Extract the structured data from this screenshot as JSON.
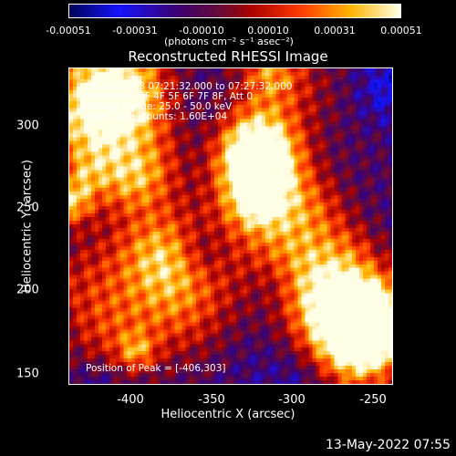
{
  "colorbar": {
    "ticks": [
      "-0.00051",
      "-0.00031",
      "-0.00010",
      "0.00010",
      "0.00031",
      "0.00051"
    ],
    "units": "(photons cm⁻² s⁻¹ asec⁻²)"
  },
  "plot": {
    "title": "Reconstructed RHESSI Image",
    "info_lines": [
      "29-Apr-2013 07:21:32.000 to 07:27:32.000",
      "Detectors: 3F 4F 5F 6F 7F 8F, Att 0",
      "Energy Range: 25.0 - 50.0 keV",
      "Clean   Total counts: 1.60E+04"
    ],
    "peak_label": "Position of Peak = [-406,303]",
    "xlabel": "Heliocentric X (arcsec)",
    "ylabel": "Heliocentric Y (arcsec)",
    "xticks": [
      "-400",
      "-350",
      "-300",
      "-250"
    ],
    "yticks": [
      "300",
      "250",
      "200",
      "150"
    ]
  },
  "footer": {
    "timestamp": "13-May-2022 07:55"
  }
}
